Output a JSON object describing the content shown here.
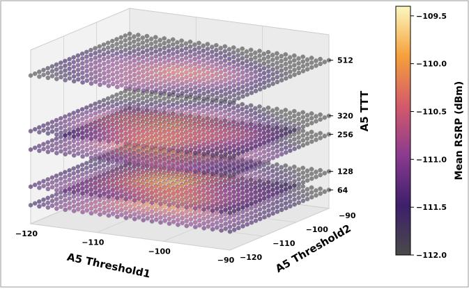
{
  "chart_data": {
    "type": "scatter",
    "subtype": "3d-scatter-layers",
    "xlabel": "A5 Threshold1",
    "ylabel": "A5 Threshold2",
    "zlabel": "A5 TTT",
    "colorbar_label": "Mean RSRP (dBm)",
    "colormap": "inferno",
    "x_range": [
      -120,
      -90
    ],
    "y_range": [
      -120,
      -90
    ],
    "x_ticks": [
      -120,
      -110,
      -100,
      -90
    ],
    "y_ticks": [
      -120,
      -110,
      -100,
      -90
    ],
    "z_ticks": [
      64,
      128,
      256,
      320,
      512
    ],
    "layers": [
      64,
      128,
      256,
      320,
      512
    ],
    "colorbar_range": [
      -112.0,
      -109.4
    ],
    "colorbar_ticks": [
      -109.5,
      -110.0,
      -110.5,
      -111.0,
      -111.5,
      -112.0
    ],
    "colors": {
      "low": "#1a1a2e",
      "mid": "#a34a9a",
      "high": "#f4a83a",
      "top": "#fcffa4"
    }
  }
}
